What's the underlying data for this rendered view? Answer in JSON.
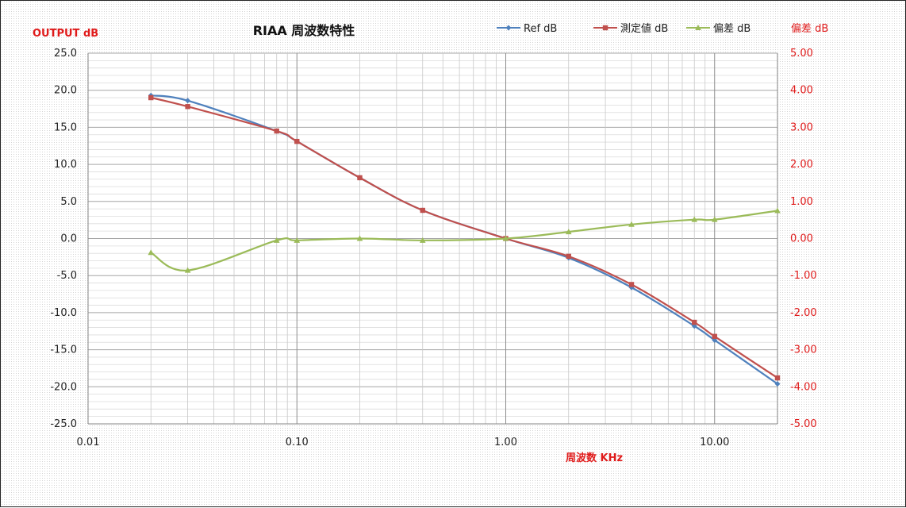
{
  "chart_data": {
    "type": "line",
    "title": "RIAA 周波数特性",
    "xlabel": "周波数 KHz",
    "ylabel": "OUTPUT dB",
    "y2label": "偏差 dB",
    "xscale": "log",
    "xlim": [
      0.01,
      20
    ],
    "ylim": [
      -25,
      25
    ],
    "y2lim": [
      -5,
      5
    ],
    "x_ticks": [
      "0.01",
      "0.10",
      "1.00",
      "10.00"
    ],
    "y_ticks": [
      "25.0",
      "20.0",
      "15.0",
      "10.0",
      "5.0",
      "0.0",
      "-5.0",
      "-10.0",
      "-15.0",
      "-20.0",
      "-25.0"
    ],
    "y2_ticks": [
      "5.00",
      "4.00",
      "3.00",
      "2.00",
      "1.00",
      "0.00",
      "-1.00",
      "-2.00",
      "-3.00",
      "-4.00",
      "-5.00"
    ],
    "grid": true,
    "legend_position": "top",
    "series": [
      {
        "name": "Ref dB",
        "axis": "left",
        "color": "#4f81bd",
        "marker": "diamond",
        "x": [
          0.02,
          0.03,
          0.08,
          0.1,
          0.2,
          0.4,
          1,
          2,
          4,
          8,
          10,
          20
        ],
        "values": [
          19.3,
          18.6,
          14.5,
          13.1,
          8.2,
          3.8,
          0.0,
          -2.6,
          -6.6,
          -11.8,
          -13.7,
          -19.6
        ]
      },
      {
        "name": "測定値 dB",
        "axis": "left",
        "color": "#c0504d",
        "marker": "square",
        "x": [
          0.02,
          0.03,
          0.08,
          0.1,
          0.2,
          0.4,
          1,
          2,
          4,
          8,
          10,
          20
        ],
        "values": [
          19.0,
          17.8,
          14.5,
          13.1,
          8.2,
          3.8,
          0.0,
          -2.4,
          -6.2,
          -11.3,
          -13.2,
          -18.8
        ]
      },
      {
        "name": "偏差 dB",
        "axis": "right",
        "color": "#9bbb59",
        "marker": "triangle",
        "x": [
          0.02,
          0.03,
          0.08,
          0.1,
          0.2,
          0.4,
          1,
          2,
          4,
          8,
          10,
          20
        ],
        "values": [
          -0.38,
          -0.86,
          -0.05,
          -0.05,
          0.0,
          -0.05,
          0.0,
          0.18,
          0.38,
          0.51,
          0.51,
          0.75
        ]
      }
    ]
  }
}
